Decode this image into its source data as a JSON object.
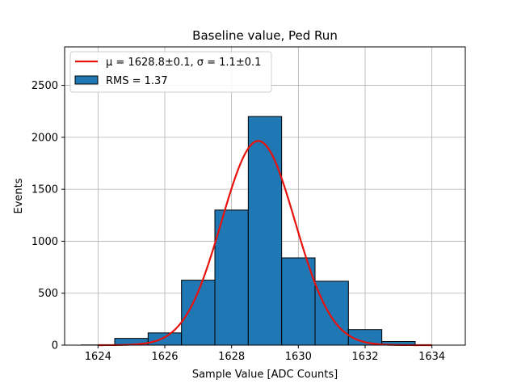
{
  "chart_data": {
    "type": "bar",
    "title": "Baseline value, Ped Run",
    "xlabel": "Sample Value [ADC Counts]",
    "ylabel": "Events",
    "xlim": [
      1623,
      1635
    ],
    "ylim": [
      0,
      2870
    ],
    "xticks": [
      1624,
      1626,
      1628,
      1630,
      1632,
      1634
    ],
    "yticks": [
      0,
      500,
      1000,
      1500,
      2000,
      2500
    ],
    "grid": true,
    "legend_position": "top-left",
    "bins": [
      {
        "left": 1623.5,
        "right": 1624.5,
        "value": 2
      },
      {
        "left": 1624.5,
        "right": 1625.5,
        "value": 65
      },
      {
        "left": 1625.5,
        "right": 1626.5,
        "value": 118
      },
      {
        "left": 1626.5,
        "right": 1627.5,
        "value": 625
      },
      {
        "left": 1627.5,
        "right": 1628.5,
        "value": 1300
      },
      {
        "left": 1628.5,
        "right": 1629.5,
        "value": 2200
      },
      {
        "left": 1629.5,
        "right": 1630.5,
        "value": 840
      },
      {
        "left": 1630.5,
        "right": 1631.5,
        "value": 615
      },
      {
        "left": 1631.5,
        "right": 1632.5,
        "value": 150
      },
      {
        "left": 1632.5,
        "right": 1633.5,
        "value": 35
      }
    ],
    "fit": {
      "mu": 1628.8,
      "sigma": 1.1,
      "amplitude": 1965,
      "x_range": [
        1624,
        1634
      ]
    },
    "legend": [
      {
        "label": "μ = 1628.8±0.1, σ = 1.1±0.1",
        "kind": "line"
      },
      {
        "label": "RMS = 1.37",
        "kind": "patch"
      }
    ],
    "colors": {
      "bars": "#1f77b4",
      "bar_edge": "#000000",
      "fit_line": "#e8120c",
      "grid": "#b0b0b0"
    }
  }
}
